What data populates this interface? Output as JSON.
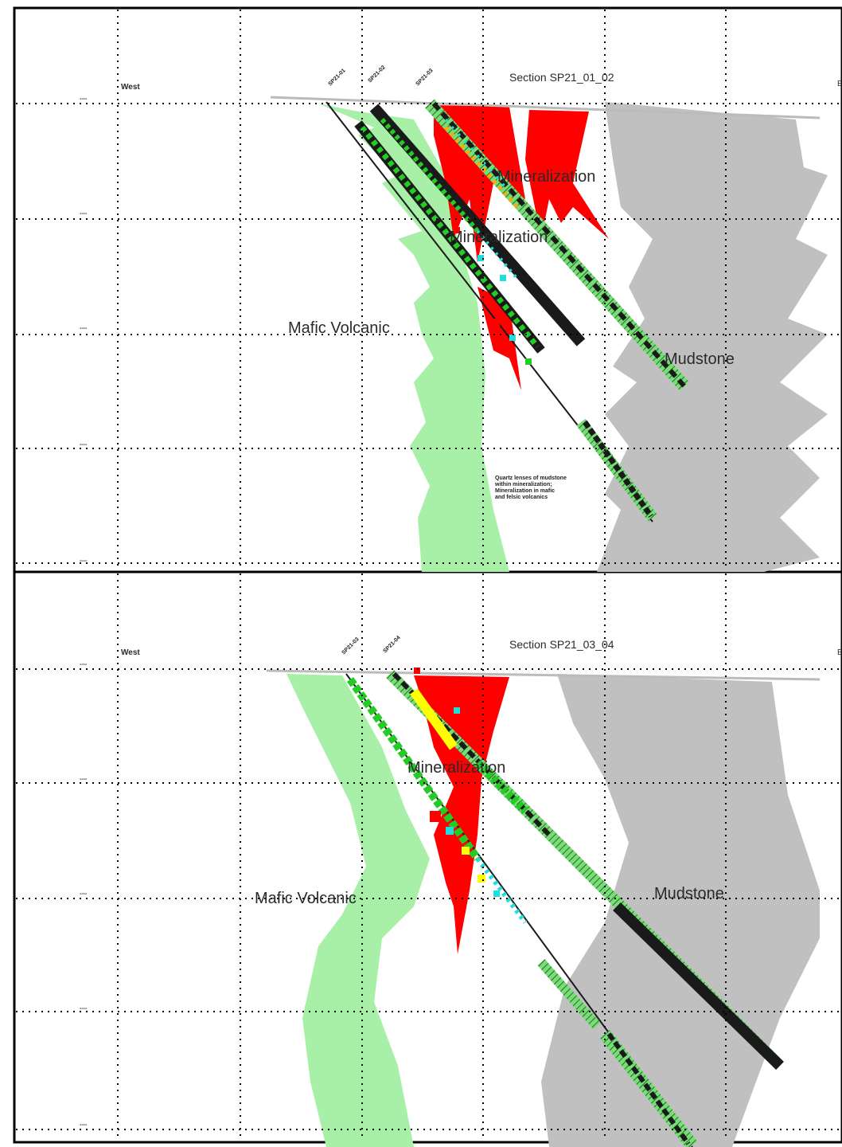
{
  "panels": [
    {
      "section_title": "Section SP21_01_02",
      "west_label": "West",
      "east_label": "E",
      "elevation_ticks": [
        "----",
        "----",
        "----",
        "----",
        "----"
      ],
      "hole_labels": [
        "SP21-01",
        "SP21-02",
        "SP21-03"
      ],
      "units": {
        "mineralization_upper": "Mineralization",
        "mineralization_lower": "Mineralization",
        "mafic": "Mafic Volcanic",
        "mudstone": "Mudstone"
      },
      "note": [
        "Quartz lenses of mudstone",
        "within mineralization;",
        "Mineralization in mafic",
        "and felsic volcanics"
      ]
    },
    {
      "section_title": "Section SP21_03_04",
      "west_label": "West",
      "east_label": "E",
      "elevation_ticks": [
        "----",
        "----",
        "----",
        "----",
        "----"
      ],
      "hole_labels": [
        "SP21-03",
        "SP21-04"
      ],
      "units": {
        "mineralization": "Mineralization",
        "mafic": "Mafic Volcanic",
        "mudstone": "Mudstone"
      }
    }
  ],
  "colors": {
    "mineralization": "#ff0000",
    "mafic": "#a8f0a8",
    "mudstone": "#c0c0c0",
    "drill_trace": "#1a1a1a",
    "green_assay": "#22cc22",
    "cyan_assay": "#22dddd",
    "yellow_assay": "#ffff00",
    "hatch_green": "#77dd77"
  }
}
